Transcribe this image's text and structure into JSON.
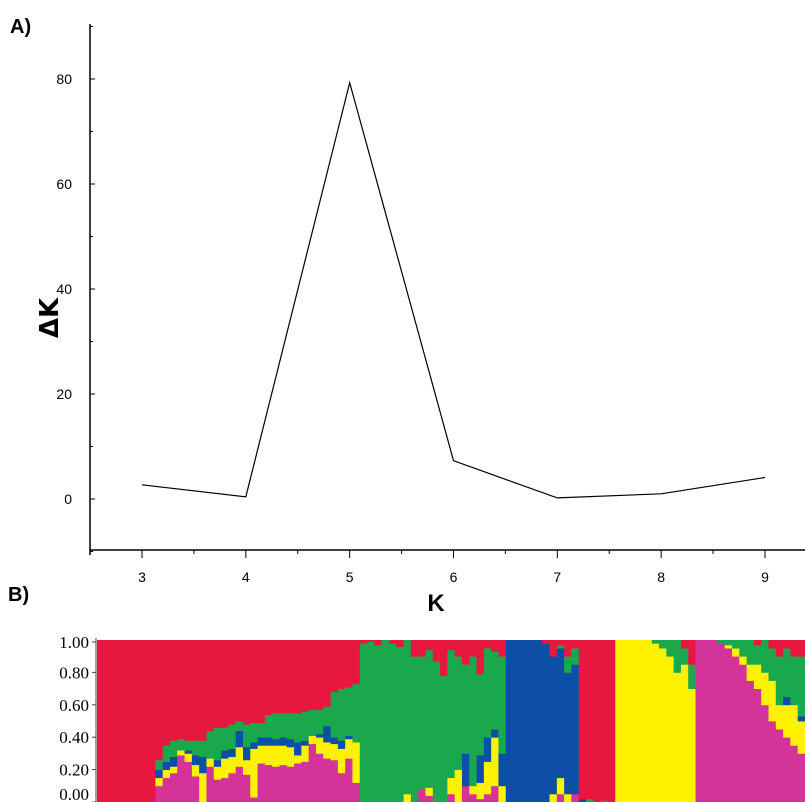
{
  "panels": {
    "a_label": "A)",
    "b_label": "B)"
  },
  "chart_data": [
    {
      "type": "line",
      "title": "",
      "xlabel": "K",
      "ylabel": "ΔK",
      "x": [
        3,
        4,
        5,
        6,
        7,
        8,
        9
      ],
      "series": [
        {
          "values": [
            2.7,
            0.4,
            79.3,
            7.3,
            0.2,
            1.0,
            4.1
          ]
        }
      ],
      "xticks": [
        "3",
        "4",
        "5",
        "6",
        "7",
        "8",
        "9"
      ],
      "yticks": [
        "0",
        "20",
        "40",
        "60",
        "80"
      ],
      "ytick_values": [
        0,
        20,
        40,
        60,
        80
      ],
      "xlim": [
        2.5,
        9.4
      ],
      "ylim": [
        -10,
        90
      ],
      "grid": false,
      "line_color": "#000000"
    },
    {
      "type": "bar",
      "stacked": true,
      "title": "",
      "yticks": [
        "1.00",
        "0.80",
        "0.60",
        "0.40",
        "0.20",
        "0.00"
      ],
      "ytick_values": [
        1.0,
        0.8,
        0.6,
        0.4,
        0.2,
        0.0
      ],
      "ylim": [
        0,
        1
      ],
      "cluster_colors": {
        "red": "#e8173f",
        "green": "#1aa84c",
        "blue": "#0d4ea6",
        "yellow": "#fff200",
        "magenta": "#d4339a"
      },
      "stack_order": [
        "magenta",
        "yellow",
        "blue",
        "green",
        "red"
      ],
      "individuals": [
        [
          0,
          0,
          0,
          0,
          1
        ],
        [
          0,
          0,
          0,
          0,
          1
        ],
        [
          0,
          0,
          0,
          0,
          1
        ],
        [
          0,
          0,
          0,
          0,
          1
        ],
        [
          0,
          0,
          0,
          0,
          1
        ],
        [
          0,
          0,
          0,
          0,
          1
        ],
        [
          0,
          0,
          0,
          0,
          1
        ],
        [
          0,
          0,
          0,
          0,
          1
        ],
        [
          0.1,
          0.05,
          0.05,
          0.06,
          0.74
        ],
        [
          0.15,
          0.05,
          0.05,
          0.1,
          0.65
        ],
        [
          0.18,
          0.04,
          0.06,
          0.1,
          0.62
        ],
        [
          0.29,
          0.03,
          0.0,
          0.07,
          0.61
        ],
        [
          0.25,
          0.05,
          0.02,
          0.06,
          0.62
        ],
        [
          0.16,
          0.07,
          0.06,
          0.09,
          0.62
        ],
        [
          0.0,
          0.18,
          0.1,
          0.1,
          0.62
        ],
        [
          0.22,
          0.05,
          0.0,
          0.17,
          0.56
        ],
        [
          0.14,
          0.08,
          0.04,
          0.2,
          0.54
        ],
        [
          0.15,
          0.12,
          0.05,
          0.14,
          0.54
        ],
        [
          0.18,
          0.1,
          0.05,
          0.15,
          0.52
        ],
        [
          0.22,
          0.12,
          0.1,
          0.06,
          0.5
        ],
        [
          0.17,
          0.09,
          0.08,
          0.14,
          0.52
        ],
        [
          0.03,
          0.3,
          0.04,
          0.12,
          0.51
        ],
        [
          0.24,
          0.11,
          0.05,
          0.09,
          0.51
        ],
        [
          0.23,
          0.12,
          0.05,
          0.14,
          0.46
        ],
        [
          0.22,
          0.13,
          0.04,
          0.16,
          0.45
        ],
        [
          0.23,
          0.12,
          0.05,
          0.15,
          0.45
        ],
        [
          0.22,
          0.12,
          0.05,
          0.16,
          0.45
        ],
        [
          0.24,
          0.05,
          0.08,
          0.18,
          0.45
        ],
        [
          0.25,
          0.1,
          0.03,
          0.18,
          0.44
        ],
        [
          0.36,
          0.05,
          0.0,
          0.16,
          0.43
        ],
        [
          0.3,
          0.1,
          0.02,
          0.15,
          0.43
        ],
        [
          0.27,
          0.1,
          0.1,
          0.12,
          0.41
        ],
        [
          0.26,
          0.1,
          0.04,
          0.28,
          0.32
        ],
        [
          0.18,
          0.15,
          0.05,
          0.32,
          0.3
        ],
        [
          0.27,
          0.12,
          0.02,
          0.3,
          0.29
        ],
        [
          0.12,
          0.25,
          0.0,
          0.36,
          0.27
        ],
        [
          0,
          0,
          0,
          0.98,
          0.02
        ],
        [
          0,
          0,
          0,
          0.99,
          0.01
        ],
        [
          0,
          0,
          0,
          0.97,
          0.03
        ],
        [
          0,
          0,
          0,
          1,
          0
        ],
        [
          0,
          0,
          0,
          0.98,
          0.02
        ],
        [
          0,
          0,
          0,
          0.96,
          0.04
        ],
        [
          0,
          0.05,
          0,
          0.95,
          0
        ],
        [
          0,
          0,
          0,
          0.9,
          0.1
        ],
        [
          0.08,
          0,
          0,
          0.82,
          0.1
        ],
        [
          0.04,
          0.05,
          0,
          0.85,
          0.06
        ],
        [
          0,
          0,
          0,
          0.87,
          0.13
        ],
        [
          0,
          0,
          0,
          0.78,
          0.22
        ],
        [
          0.05,
          0.1,
          0,
          0.79,
          0.06
        ],
        [
          0,
          0.2,
          0,
          0.7,
          0.1
        ],
        [
          0.1,
          0,
          0.2,
          0.55,
          0.15
        ],
        [
          0.05,
          0.05,
          0,
          0.8,
          0.1
        ],
        [
          0.02,
          0.1,
          0.17,
          0.5,
          0.21
        ],
        [
          0.05,
          0.2,
          0.15,
          0.55,
          0.05
        ],
        [
          0.1,
          0.3,
          0.05,
          0.48,
          0.07
        ],
        [
          0,
          0.1,
          0.2,
          0.6,
          0.1
        ],
        [
          0,
          0,
          1,
          0,
          0
        ],
        [
          0,
          0,
          1,
          0,
          0
        ],
        [
          0,
          0,
          1,
          0,
          0
        ],
        [
          0,
          0,
          1,
          0,
          0
        ],
        [
          0,
          0,
          1,
          0,
          0
        ],
        [
          0,
          0,
          0.98,
          0,
          0.02
        ],
        [
          0,
          0.05,
          0.85,
          0,
          0.1
        ],
        [
          0.05,
          0.1,
          0.8,
          0.02,
          0.03
        ],
        [
          0,
          0.05,
          0.75,
          0.1,
          0.1
        ],
        [
          0.05,
          0,
          0.8,
          0.1,
          0.05
        ],
        [
          0,
          0,
          0.02,
          0,
          0.98
        ],
        [
          0,
          0,
          0,
          0.02,
          0.98
        ],
        [
          0,
          0,
          0,
          0,
          1
        ],
        [
          0,
          0,
          0,
          0.01,
          0.99
        ],
        [
          0,
          0,
          0,
          0,
          1
        ],
        [
          0,
          1,
          0,
          0,
          0
        ],
        [
          0,
          1,
          0,
          0,
          0
        ],
        [
          0,
          1,
          0,
          0,
          0
        ],
        [
          0,
          1,
          0,
          0,
          0
        ],
        [
          0,
          1,
          0,
          0,
          0
        ],
        [
          0,
          0.98,
          0,
          0.02,
          0
        ],
        [
          0,
          0.95,
          0,
          0.05,
          0
        ],
        [
          0,
          0.9,
          0,
          0.1,
          0
        ],
        [
          0,
          0.8,
          0,
          0.2,
          0
        ],
        [
          0,
          0.85,
          0,
          0.1,
          0.05
        ],
        [
          0,
          0.7,
          0,
          0.15,
          0.15
        ],
        [
          1,
          0,
          0,
          0,
          0
        ],
        [
          1,
          0,
          0,
          0,
          0
        ],
        [
          1,
          0,
          0,
          0,
          0
        ],
        [
          0.98,
          0,
          0,
          0.02,
          0
        ],
        [
          0.95,
          0.02,
          0,
          0.03,
          0
        ],
        [
          0.9,
          0.05,
          0,
          0.05,
          0
        ],
        [
          0.85,
          0.05,
          0,
          0.1,
          0
        ],
        [
          0.75,
          0.1,
          0,
          0.15,
          0
        ],
        [
          0.7,
          0.15,
          0,
          0.12,
          0.03
        ],
        [
          0.6,
          0.2,
          0,
          0.2,
          0
        ],
        [
          0.5,
          0.25,
          0,
          0.2,
          0.05
        ],
        [
          0.45,
          0.15,
          0,
          0.3,
          0.1
        ],
        [
          0.4,
          0.2,
          0.05,
          0.3,
          0.05
        ],
        [
          0.35,
          0.25,
          0,
          0.3,
          0.1
        ],
        [
          0.3,
          0.2,
          0.03,
          0.37,
          0.1
        ]
      ]
    }
  ]
}
